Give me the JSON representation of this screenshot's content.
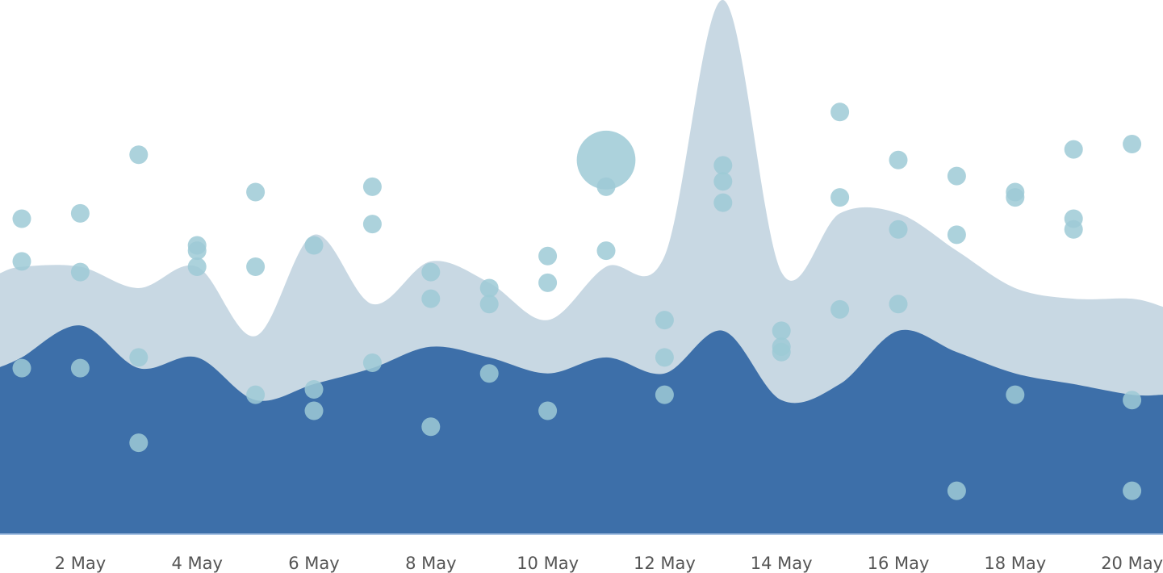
{
  "chart_data": {
    "type": "area",
    "title": "",
    "xlabel": "",
    "ylabel": "",
    "ylim": [
      0,
      100
    ],
    "grid": false,
    "legend": "none",
    "x": [
      "1 May",
      "2 May",
      "3 May",
      "4 May",
      "5 May",
      "6 May",
      "7 May",
      "8 May",
      "9 May",
      "10 May",
      "11 May",
      "12 May",
      "13 May",
      "14 May",
      "15 May",
      "16 May",
      "17 May",
      "18 May",
      "19 May",
      "20 May"
    ],
    "x_tick_labels": [
      "2 May",
      "4 May",
      "6 May",
      "8 May",
      "10 May",
      "12 May",
      "14 May",
      "16 May",
      "18 May",
      "20 May"
    ],
    "area_series": [
      {
        "color": "#c8d8e3",
        "values": [
          50,
          50,
          46,
          50,
          37,
          56,
          43,
          51,
          47,
          40,
          50,
          52,
          100,
          49,
          60,
          60,
          53,
          46,
          44,
          44
        ]
      },
      {
        "color": "#3d6fa9",
        "values": [
          33,
          39,
          31,
          33,
          25,
          28,
          31,
          35,
          33,
          30,
          33,
          30,
          38,
          25,
          28,
          38,
          34,
          30,
          28,
          26
        ]
      }
    ],
    "scatter": {
      "type": "scatter",
      "color": "#9ecad6",
      "points": [
        {
          "x": "1 May",
          "y": [
            59,
            51,
            31
          ]
        },
        {
          "x": "2 May",
          "y": [
            60,
            49,
            31
          ]
        },
        {
          "x": "3 May",
          "y": [
            71,
            33,
            17
          ]
        },
        {
          "x": "4 May",
          "y": [
            54,
            53,
            50
          ]
        },
        {
          "x": "5 May",
          "y": [
            64,
            50,
            26
          ]
        },
        {
          "x": "6 May",
          "y": [
            54,
            27,
            23
          ]
        },
        {
          "x": "7 May",
          "y": [
            65,
            58,
            32
          ]
        },
        {
          "x": "8 May",
          "y": [
            49,
            44,
            20
          ]
        },
        {
          "x": "9 May",
          "y": [
            46,
            43,
            30
          ]
        },
        {
          "x": "10 May",
          "y": [
            52,
            47,
            23
          ]
        },
        {
          "x": "11 May",
          "y": [
            70,
            65,
            53
          ],
          "size": [
            100,
            10,
            10
          ]
        },
        {
          "x": "12 May",
          "y": [
            40,
            33,
            26
          ]
        },
        {
          "x": "13 May",
          "y": [
            69,
            66,
            62
          ]
        },
        {
          "x": "14 May",
          "y": [
            38,
            35,
            34
          ]
        },
        {
          "x": "15 May",
          "y": [
            79,
            63,
            42
          ]
        },
        {
          "x": "16 May",
          "y": [
            70,
            57,
            43
          ]
        },
        {
          "x": "17 May",
          "y": [
            67,
            56,
            8
          ]
        },
        {
          "x": "18 May",
          "y": [
            64,
            63,
            26
          ]
        },
        {
          "x": "19 May",
          "y": [
            72,
            59,
            57
          ]
        },
        {
          "x": "20 May",
          "y": [
            73,
            25,
            8
          ]
        }
      ]
    },
    "axis_color": "#a9c4e4"
  }
}
